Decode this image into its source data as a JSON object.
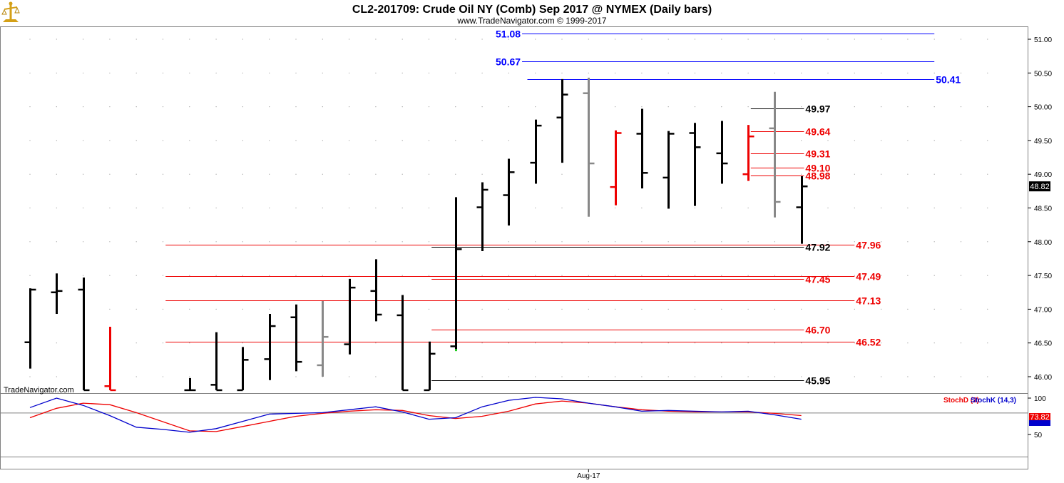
{
  "chart": {
    "title": "CL2-201709:  Crude Oil NY (Comb) Sep 2017 @ NYMEX  (Daily bars)",
    "copyright": "www.TradeNavigator.com © 1999-2017",
    "watermark": "TradeNavigator.com",
    "logo_icon": "scales-logo-icon",
    "last_price_label": "48.82",
    "x_label": "Aug-17"
  },
  "chart_data": [
    {
      "type": "ohlc",
      "title": "CL2-201709:  Crude Oil NY (Comb) Sep 2017 @ NYMEX  (Daily bars)",
      "ylim": [
        45.8,
        51.3
      ],
      "y_ticks": [
        "51.00",
        "50.50",
        "50.00",
        "49.50",
        "49.00",
        "48.50",
        "48.00",
        "47.50",
        "47.00",
        "46.50",
        "46.00"
      ],
      "y_tick_values": [
        51.0,
        50.5,
        50.0,
        49.5,
        49.0,
        48.5,
        48.0,
        47.5,
        47.0,
        46.5,
        46.0
      ],
      "x_tick_label": "Aug-17",
      "x_tick_index": 21,
      "last_price": 48.82,
      "colors": {
        "up": "#000000",
        "down_red": "#ee0000",
        "neutral_gray": "#888888",
        "level_blue": "#0000ff",
        "level_red": "#ee0000",
        "level_black": "#000000"
      },
      "bars": [
        {
          "o": 46.51,
          "h": 47.31,
          "l": 46.12,
          "c": 47.29,
          "color": "#000000"
        },
        {
          "o": 47.25,
          "h": 47.53,
          "l": 46.93,
          "c": 47.27,
          "color": "#000000"
        },
        {
          "o": 47.29,
          "h": 47.47,
          "l": 45.8,
          "c": 45.8,
          "color": "#000000"
        },
        {
          "o": 45.86,
          "h": 46.74,
          "l": 45.8,
          "c": 45.8,
          "color": "#ee0000"
        },
        null,
        null,
        {
          "o": 45.8,
          "h": 45.98,
          "l": 45.8,
          "c": 45.8,
          "color": "#000000"
        },
        {
          "o": 45.88,
          "h": 46.66,
          "l": 45.8,
          "c": 45.8,
          "color": "#000000"
        },
        {
          "o": 45.8,
          "h": 46.44,
          "l": 45.8,
          "c": 46.25,
          "color": "#000000"
        },
        {
          "o": 46.26,
          "h": 46.93,
          "l": 45.95,
          "c": 46.75,
          "color": "#000000"
        },
        {
          "o": 46.88,
          "h": 47.07,
          "l": 46.08,
          "c": 46.22,
          "color": "#000000"
        },
        {
          "o": 46.17,
          "h": 47.12,
          "l": 46.0,
          "c": 46.59,
          "color": "#888888"
        },
        {
          "o": 46.48,
          "h": 47.45,
          "l": 46.33,
          "c": 47.32,
          "color": "#000000"
        },
        {
          "o": 47.27,
          "h": 47.74,
          "l": 46.82,
          "c": 46.92,
          "color": "#000000"
        },
        {
          "o": 46.91,
          "h": 47.21,
          "l": 45.8,
          "c": 45.8,
          "color": "#000000"
        },
        {
          "o": 45.8,
          "h": 46.52,
          "l": 45.8,
          "c": 46.34,
          "color": "#000000"
        },
        {
          "o": 46.45,
          "h": 48.66,
          "l": 46.4,
          "c": 47.89,
          "color": "#000000"
        },
        {
          "o": 48.51,
          "h": 48.88,
          "l": 47.86,
          "c": 48.77,
          "color": "#000000"
        },
        {
          "o": 48.69,
          "h": 49.23,
          "l": 48.24,
          "c": 49.03,
          "color": "#000000"
        },
        {
          "o": 49.17,
          "h": 49.81,
          "l": 48.86,
          "c": 49.72,
          "color": "#000000"
        },
        {
          "o": 49.84,
          "h": 50.41,
          "l": 49.17,
          "c": 50.18,
          "color": "#000000"
        },
        {
          "o": 50.2,
          "h": 50.43,
          "l": 48.37,
          "c": 49.16,
          "color": "#888888"
        },
        {
          "o": 48.81,
          "h": 49.65,
          "l": 48.54,
          "c": 49.61,
          "color": "#ee0000"
        },
        {
          "o": 49.6,
          "h": 49.97,
          "l": 48.79,
          "c": 49.02,
          "color": "#000000"
        },
        {
          "o": 48.95,
          "h": 49.64,
          "l": 48.49,
          "c": 49.6,
          "color": "#000000"
        },
        {
          "o": 49.61,
          "h": 49.76,
          "l": 48.53,
          "c": 49.4,
          "color": "#000000"
        },
        {
          "o": 49.31,
          "h": 49.79,
          "l": 48.86,
          "c": 49.16,
          "color": "#000000"
        },
        {
          "o": 49.0,
          "h": 49.73,
          "l": 48.9,
          "c": 49.56,
          "color": "#ee0000"
        },
        {
          "o": 49.68,
          "h": 50.22,
          "l": 48.36,
          "c": 48.59,
          "color": "#888888"
        },
        {
          "o": 48.51,
          "h": 48.97,
          "l": 47.97,
          "c": 48.82,
          "color": "#000000"
        }
      ],
      "levels": [
        {
          "label": "51.08",
          "value": 51.08,
          "color": "#0000ff",
          "label_side": "left",
          "line_from_bar": 18.5,
          "line_to_bar": 34.0
        },
        {
          "label": "50.67",
          "value": 50.67,
          "color": "#0000ff",
          "label_side": "left",
          "line_from_bar": 18.5,
          "line_to_bar": 34.0
        },
        {
          "label": "50.41",
          "value": 50.41,
          "color": "#0000ff",
          "label_side": "right",
          "line_from_bar": 18.7,
          "line_to_bar": 34.0
        },
        {
          "label": "49.97",
          "value": 49.97,
          "color": "#000000",
          "label_side": "right",
          "line_from_bar": 27.1,
          "line_to_bar": 29.1
        },
        {
          "label": "49.64",
          "value": 49.64,
          "color": "#ee0000",
          "label_side": "right",
          "line_from_bar": 27.1,
          "line_to_bar": 29.1
        },
        {
          "label": "49.31",
          "value": 49.31,
          "color": "#ee0000",
          "label_side": "right",
          "line_from_bar": 27.1,
          "line_to_bar": 29.1
        },
        {
          "label": "49.10",
          "value": 49.1,
          "color": "#ee0000",
          "label_side": "right",
          "line_from_bar": 27.1,
          "line_to_bar": 29.1
        },
        {
          "label": "48.98",
          "value": 48.98,
          "color": "#ee0000",
          "label_side": "right",
          "line_from_bar": 27.1,
          "line_to_bar": 29.1
        },
        {
          "label": "47.96",
          "value": 47.96,
          "color": "#ee0000",
          "label_side": "right",
          "line_from_bar": 5.1,
          "line_to_bar": 31.0
        },
        {
          "label": "47.92",
          "value": 47.92,
          "color": "#000000",
          "label_side": "right",
          "line_from_bar": 15.1,
          "line_to_bar": 29.1
        },
        {
          "label": "47.49",
          "value": 47.49,
          "color": "#ee0000",
          "label_side": "right",
          "line_from_bar": 5.1,
          "line_to_bar": 31.0
        },
        {
          "label": "47.45",
          "value": 47.45,
          "color": "#ee0000",
          "label_side": "right",
          "line_from_bar": 15.1,
          "line_to_bar": 29.1
        },
        {
          "label": "47.13",
          "value": 47.13,
          "color": "#ee0000",
          "label_side": "right",
          "line_from_bar": 5.1,
          "line_to_bar": 31.0
        },
        {
          "label": "46.70",
          "value": 46.7,
          "color": "#ee0000",
          "label_side": "right",
          "line_from_bar": 15.1,
          "line_to_bar": 29.1
        },
        {
          "label": "46.52",
          "value": 46.52,
          "color": "#ee0000",
          "label_side": "right",
          "line_from_bar": 5.1,
          "line_to_bar": 31.0
        },
        {
          "label": "45.95",
          "value": 45.95,
          "color": "#000000",
          "label_side": "right",
          "line_from_bar": 15.1,
          "line_to_bar": 29.1
        }
      ]
    },
    {
      "type": "line",
      "ylim": [
        20,
        110
      ],
      "y_ticks": [
        "100",
        "50"
      ],
      "y_tick_values": [
        100,
        50
      ],
      "reference_line": 80,
      "last_value_label": "73.82",
      "series": [
        {
          "name": "StochD (3)",
          "color": "#ee0000",
          "points": [
            [
              0,
              73
            ],
            [
              1,
              86
            ],
            [
              2,
              93
            ],
            [
              3,
              91
            ],
            [
              4,
              80
            ],
            [
              6,
              55
            ],
            [
              7,
              54
            ],
            [
              8,
              61
            ],
            [
              9,
              68
            ],
            [
              10,
              75
            ],
            [
              11,
              79
            ],
            [
              12,
              82
            ],
            [
              13,
              84
            ],
            [
              14,
              83
            ],
            [
              15,
              76
            ],
            [
              16,
              72
            ],
            [
              17,
              75
            ],
            [
              18,
              82
            ],
            [
              19,
              92
            ],
            [
              20,
              96
            ],
            [
              21,
              93
            ],
            [
              22,
              88
            ],
            [
              23,
              84
            ],
            [
              24,
              82
            ],
            [
              25,
              81
            ],
            [
              26,
              81
            ],
            [
              27,
              81
            ],
            [
              28,
              79
            ],
            [
              29,
              76
            ]
          ]
        },
        {
          "name": "StochK (14,3)",
          "color": "#0000cc",
          "points": [
            [
              0,
              87
            ],
            [
              1,
              100
            ],
            [
              2,
              90
            ],
            [
              3,
              76
            ],
            [
              4,
              60
            ],
            [
              5,
              57
            ],
            [
              6,
              53
            ],
            [
              7,
              58
            ],
            [
              8,
              68
            ],
            [
              9,
              78
            ],
            [
              10,
              79
            ],
            [
              11,
              80
            ],
            [
              12,
              84
            ],
            [
              13,
              88
            ],
            [
              14,
              81
            ],
            [
              15,
              71
            ],
            [
              16,
              73
            ],
            [
              17,
              88
            ],
            [
              18,
              97
            ],
            [
              19,
              101
            ],
            [
              20,
              99
            ],
            [
              21,
              93
            ],
            [
              22,
              88
            ],
            [
              23,
              82
            ],
            [
              24,
              83
            ],
            [
              25,
              82
            ],
            [
              26,
              81
            ],
            [
              27,
              82
            ],
            [
              28,
              77
            ],
            [
              29,
              71
            ]
          ]
        }
      ]
    }
  ]
}
